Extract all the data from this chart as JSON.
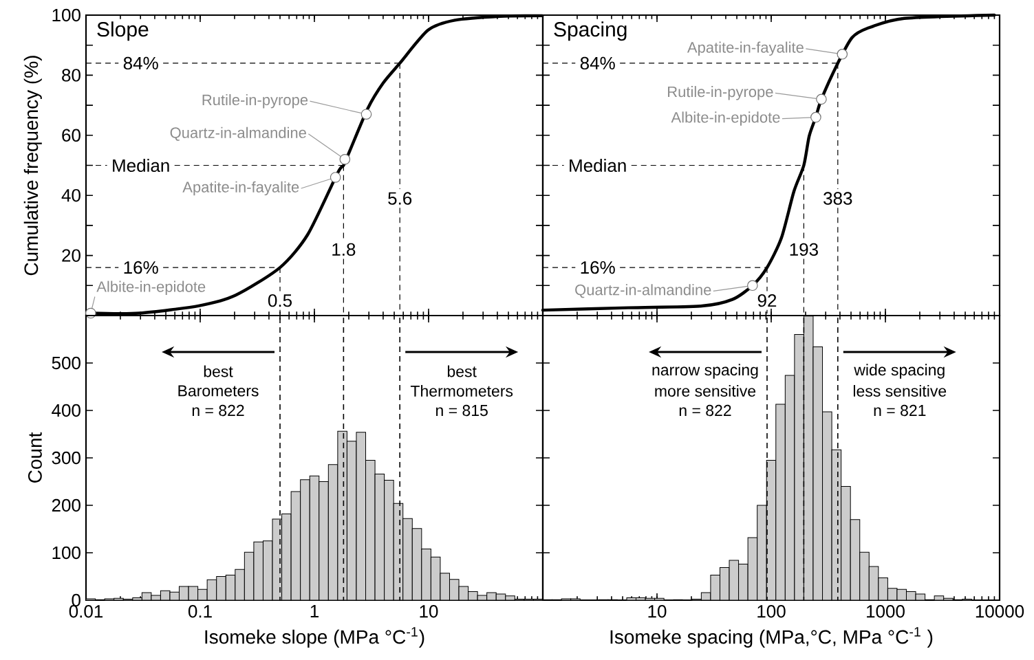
{
  "chart_data": [
    {
      "type": "line",
      "title": "Slope",
      "ylabel": "Cumulative frequency (%)",
      "color": "#000000",
      "log": "x",
      "tick_labels": "y",
      "x": [
        0.011,
        0.0294,
        0.0988,
        0.205,
        0.5,
        0.875,
        1.6,
        1.8,
        2.05,
        2.94,
        4,
        5.6,
        9.9,
        17,
        42,
        99
      ],
      "values": [
        0.8,
        0.8,
        3.3,
        6.8,
        16,
        27,
        47.5,
        50,
        55,
        69,
        77.4,
        84,
        95,
        98.3,
        99.6,
        99.8
      ],
      "xlim": [
        0.01,
        100
      ],
      "ylim": [
        0,
        100
      ],
      "xticks": [
        0.01,
        0.1,
        1,
        10,
        100
      ],
      "yticks": [
        {
          "value": 10,
          "label": null
        },
        20,
        {
          "value": 30,
          "label": null
        },
        40,
        {
          "value": 50,
          "label": null
        },
        60,
        {
          "value": 70,
          "label": null
        },
        80,
        {
          "value": 90,
          "label": null
        },
        100
      ],
      "ref_lines": [
        {
          "axis": "y",
          "value": 16,
          "label": "16%"
        },
        {
          "axis": "y",
          "value": 50,
          "label": "Median"
        },
        {
          "axis": "y",
          "value": 84,
          "label": "84%"
        },
        {
          "axis": "x",
          "value": 0.5,
          "label": "0.5"
        },
        {
          "axis": "x",
          "value": 1.8,
          "label": "1.8"
        },
        {
          "axis": "x",
          "value": 5.6,
          "label": "5.6"
        }
      ],
      "annotations": [
        {
          "text": "Rutile-in-pyrope",
          "x": 2.85,
          "y": 67
        },
        {
          "text": "Quartz-in-almandine",
          "x": 1.85,
          "y": 52
        },
        {
          "text": "Apatite-in-fayalite",
          "x": 1.53,
          "y": 46
        },
        {
          "text": "Albite-in-epidote",
          "x": 0.011,
          "y": 0.8
        }
      ]
    },
    {
      "type": "line",
      "title": "Spacing",
      "color": "#000000",
      "log": "x",
      "tick_labels": false,
      "x": [
        1,
        5.6,
        24.8,
        46,
        68.6,
        92,
        123,
        158,
        193,
        215,
        246,
        275,
        383,
        510,
        693,
        1458,
        9000
      ],
      "values": [
        1.8,
        2.6,
        3.2,
        5.4,
        10,
        16,
        25.9,
        41.3,
        50,
        59.7,
        66.1,
        72,
        84,
        92.5,
        95.6,
        98.9,
        100
      ],
      "xlim": [
        1,
        10000
      ],
      "ylim": [
        0,
        100
      ],
      "xticks": [
        1,
        10,
        100,
        1000,
        10000
      ],
      "yticks": [
        10,
        20,
        30,
        40,
        50,
        60,
        70,
        80,
        90,
        100
      ],
      "ref_lines": [
        {
          "axis": "y",
          "value": 16,
          "label": "16%"
        },
        {
          "axis": "y",
          "value": 50,
          "label": "Median"
        },
        {
          "axis": "y",
          "value": 84,
          "label": "84%"
        },
        {
          "axis": "x",
          "value": 92,
          "label": "92"
        },
        {
          "axis": "x",
          "value": 193,
          "label": "193"
        },
        {
          "axis": "x",
          "value": 383,
          "label": "383"
        }
      ],
      "annotations": [
        {
          "text": "Apatite-in-fayalite",
          "x": 419,
          "y": 87
        },
        {
          "text": "Rutile-in-pyrope",
          "x": 275,
          "y": 72
        },
        {
          "text": "Albite-in-epidote",
          "x": 246,
          "y": 66
        },
        {
          "text": "Quartz-in-almandine",
          "x": 68.6,
          "y": 10
        }
      ]
    },
    {
      "type": "histogram",
      "xlabel": "Isomeke slope (MPa °C$^{-1}$)",
      "ylabel": "Count",
      "color": "#cccccc",
      "log": "x",
      "bins": [
        0.01,
        0.01207,
        0.01457,
        0.01758,
        0.02122,
        0.02562,
        0.03092,
        0.03728,
        0.045,
        0.0543,
        0.0655,
        0.0791,
        0.0954,
        0.1151,
        0.139,
        0.1677,
        0.2024,
        0.2442,
        0.2947,
        0.3557,
        0.4292,
        0.518,
        0.6251,
        0.7544,
        0.9103,
        1.0985,
        1.3257,
        1.5999,
        1.9307,
        2.33,
        2.8118,
        3.3932,
        4.0949,
        4.9417,
        5.9636,
        7.1969,
        8.6851,
        10.481,
        12.649,
        15.264,
        18.421,
        22.23,
        26.827,
        32.374,
        39.069,
        47.149,
        56.899,
        68.665,
        82.864,
        100
      ],
      "values": [
        3,
        1,
        3,
        4,
        2,
        5,
        16,
        10,
        20,
        17,
        29,
        29,
        23,
        43,
        50,
        53,
        65,
        101,
        123,
        125,
        171,
        182,
        229,
        254,
        262,
        250,
        286,
        356,
        335,
        354,
        295,
        266,
        253,
        204,
        172,
        151,
        108,
        91,
        57,
        44,
        29,
        18,
        10,
        16,
        13,
        9,
        2,
        2,
        2
      ],
      "xlim": [
        0.01,
        100
      ],
      "ylim": [
        0,
        600
      ],
      "xticks": [
        0.01,
        0.1,
        1,
        10,
        {
          "value": 100,
          "label": null
        }
      ],
      "yticks": [
        0,
        100,
        200,
        300,
        400,
        500
      ],
      "ref_lines": [
        {
          "axis": "x",
          "value": 0.5
        },
        {
          "axis": "x",
          "value": 1.8
        },
        {
          "axis": "x",
          "value": 5.6
        }
      ],
      "annotations": [
        "best",
        "Barometers",
        "n = 822",
        "best",
        "Thermometers",
        "n = 815"
      ]
    },
    {
      "type": "histogram",
      "xlabel": "Isomeke spacing (MPa,°C, MPa °C$^{-1}$ )",
      "color": "#cccccc",
      "log": "x",
      "tick_labels": "x",
      "bins": [
        1,
        1.207,
        1.457,
        1.758,
        2.122,
        2.562,
        3.092,
        3.728,
        4.5,
        5.43,
        6.55,
        7.91,
        9.54,
        11.51,
        13.9,
        16.77,
        20.24,
        24.42,
        29.47,
        35.57,
        42.92,
        51.8,
        62.51,
        75.44,
        91.03,
        109.85,
        132.57,
        159.99,
        193.07,
        233,
        281.18,
        339.32,
        409.49,
        494.17,
        596.36,
        719.69,
        868.51,
        1048.1,
        1264.9,
        1526.4,
        1842.1,
        2223,
        2682.7,
        3237.4,
        3906.9,
        4714.9,
        5689.9,
        6866.5,
        8286.4,
        10000
      ],
      "values": [
        1,
        1,
        3,
        3,
        0,
        0,
        1,
        1,
        0,
        5,
        5,
        4,
        4,
        0,
        1,
        0,
        2,
        16,
        53,
        69,
        84,
        76,
        132,
        200,
        295,
        413,
        474,
        560,
        599,
        534,
        397,
        317,
        240,
        170,
        101,
        71,
        47,
        25,
        23,
        18,
        13,
        1,
        9,
        4,
        1,
        2,
        0,
        0,
        0
      ],
      "xlim": [
        1,
        10000
      ],
      "ylim": [
        0,
        600
      ],
      "xticks": [
        {
          "value": 1,
          "label": null
        },
        10,
        100,
        1000,
        10000
      ],
      "yticks": [
        0,
        100,
        200,
        300,
        400,
        500
      ],
      "ref_lines": [
        {
          "axis": "x",
          "value": 92
        },
        {
          "axis": "x",
          "value": 193
        },
        {
          "axis": "x",
          "value": 383
        }
      ],
      "annotations": [
        "narrow spacing",
        "more sensitive",
        "n = 822",
        "wide spacing",
        "less sensitive",
        "n = 821"
      ]
    }
  ]
}
